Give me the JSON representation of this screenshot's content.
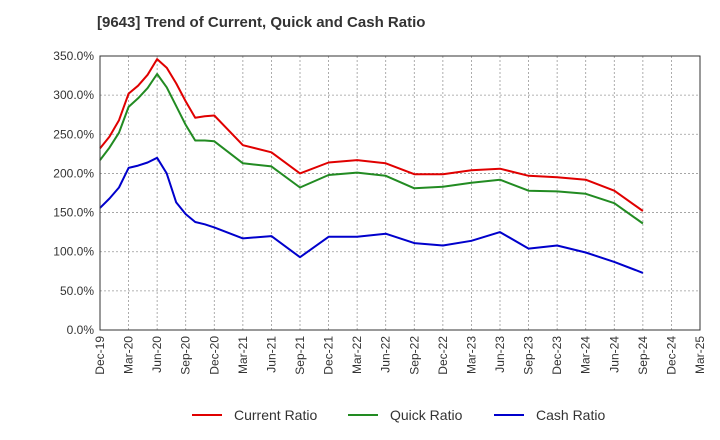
{
  "chart_data": {
    "type": "line",
    "title": "[9643]  Trend of Current, Quick and Cash Ratio",
    "xlabel": "",
    "ylabel": "",
    "ylim": [
      0,
      350
    ],
    "y_ticks": [
      0,
      50,
      100,
      150,
      200,
      250,
      300,
      350
    ],
    "y_tick_labels": [
      "0.0%",
      "50.0%",
      "100.0%",
      "150.0%",
      "200.0%",
      "250.0%",
      "300.0%",
      "350.0%"
    ],
    "x_tick_labels": [
      "Dec-19",
      "Mar-20",
      "Jun-20",
      "Sep-20",
      "Dec-20",
      "Mar-21",
      "Jun-21",
      "Sep-21",
      "Dec-21",
      "Mar-22",
      "Jun-22",
      "Sep-22",
      "Dec-22",
      "Mar-23",
      "Jun-23",
      "Sep-23",
      "Dec-23",
      "Mar-24",
      "Jun-24",
      "Sep-24",
      "Dec-24",
      "Mar-25"
    ],
    "x_months": [
      0,
      1,
      2,
      3,
      4,
      5,
      6,
      7,
      8,
      9,
      10,
      11,
      12,
      15,
      18,
      21,
      24,
      27,
      30,
      33,
      36,
      39,
      42,
      45,
      48,
      51,
      54,
      57,
      60
    ],
    "grid": true,
    "legend_position": "bottom",
    "series": [
      {
        "name": "Current Ratio",
        "color": "#e00000",
        "values": [
          232,
          247,
          268,
          302,
          312,
          326,
          346,
          335,
          315,
          292,
          271,
          273,
          274,
          236,
          227,
          200,
          214,
          217,
          213,
          199,
          199,
          204,
          206,
          197,
          195,
          192,
          178,
          152,
          null
        ]
      },
      {
        "name": "Quick Ratio",
        "color": "#228b22",
        "values": [
          217,
          233,
          252,
          285,
          296,
          309,
          327,
          310,
          286,
          262,
          242,
          242,
          241,
          213,
          209,
          182,
          198,
          201,
          197,
          181,
          183,
          188,
          192,
          178,
          177,
          174,
          162,
          136,
          null
        ]
      },
      {
        "name": "Cash Ratio",
        "color": "#0000cc",
        "values": [
          156,
          168,
          182,
          207,
          210,
          214,
          220,
          200,
          163,
          148,
          138,
          135,
          131,
          117,
          120,
          93,
          119,
          119,
          123,
          111,
          108,
          114,
          125,
          104,
          108,
          99,
          87,
          73,
          null
        ]
      }
    ]
  }
}
